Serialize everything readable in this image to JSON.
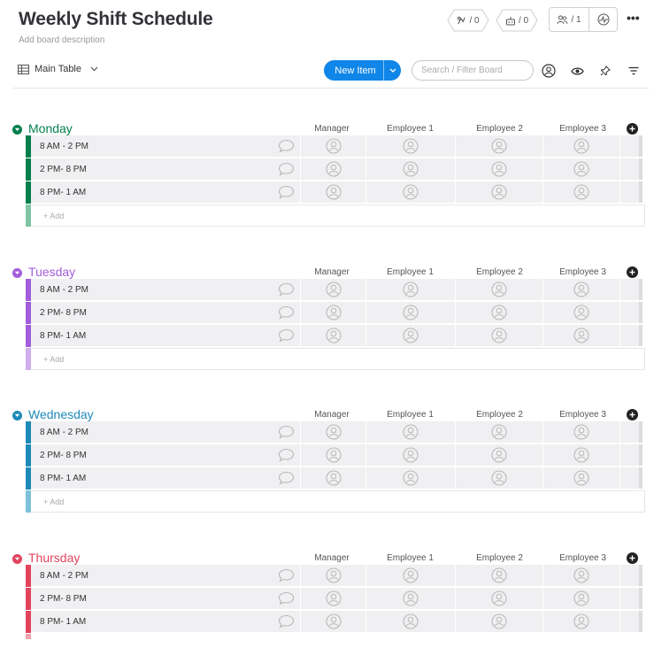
{
  "board": {
    "title": "Weekly Shift Schedule",
    "description_placeholder": "Add board description"
  },
  "header_actions": {
    "activity_count": "/ 0",
    "integrations_count": "/ 0",
    "members_count": "/ 1",
    "more_label": "•••"
  },
  "toolbar": {
    "view_label": "Main Table",
    "new_item_label": "New Item",
    "search_placeholder": "Search / Filter Board"
  },
  "columns": [
    "Manager",
    "Employee 1",
    "Employee 2",
    "Employee 3"
  ],
  "add_item_label": "+ Add",
  "groups": [
    {
      "name": "Monday",
      "color": "#037f4c",
      "light_color": "#80c3a5",
      "rows": [
        "8 AM - 2 PM",
        "2 PM- 8 PM",
        "8 PM- 1 AM"
      ]
    },
    {
      "name": "Tuesday",
      "color": "#a25ddc",
      "light_color": "#d0aeed",
      "rows": [
        "8 AM - 2 PM",
        "2 PM- 8 PM",
        "8 PM- 1 AM"
      ]
    },
    {
      "name": "Wednesday",
      "color": "#1e8ab8",
      "light_color": "#7fc0dc",
      "rows": [
        "8 AM - 2 PM",
        "2 PM- 8 PM",
        "8 PM- 1 AM"
      ]
    },
    {
      "name": "Thursday",
      "color": "#e2445c",
      "light_color": "#f0a1ad",
      "rows": [
        "8 AM - 2 PM",
        "2 PM- 8 PM",
        "8 PM- 1 AM"
      ]
    }
  ]
}
